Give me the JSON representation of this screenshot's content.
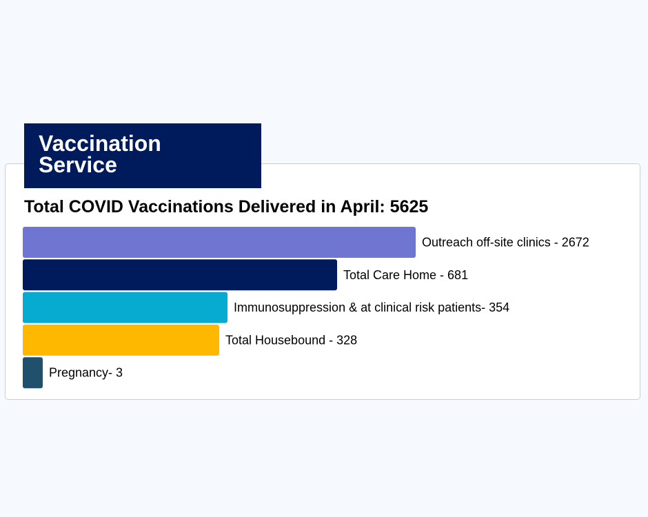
{
  "header": {
    "line1": "Vaccination",
    "line2": "Service"
  },
  "chart_data": {
    "type": "bar",
    "orientation": "horizontal",
    "title": "Total COVID Vaccinations Delivered in April: 5625",
    "categories": [
      "Outreach off-site clinics - 2672",
      "Total Care Home - 681",
      "Immunosuppression & at clinical risk patients- 354",
      "Total Housebound - 328",
      "Pregnancy- 3"
    ],
    "values": [
      2672,
      681,
      354,
      328,
      3
    ],
    "colors": [
      "#6f76d2",
      "#001b5c",
      "#07abcf",
      "#ffb800",
      "#20506b"
    ],
    "grid": false,
    "legend": "none"
  }
}
